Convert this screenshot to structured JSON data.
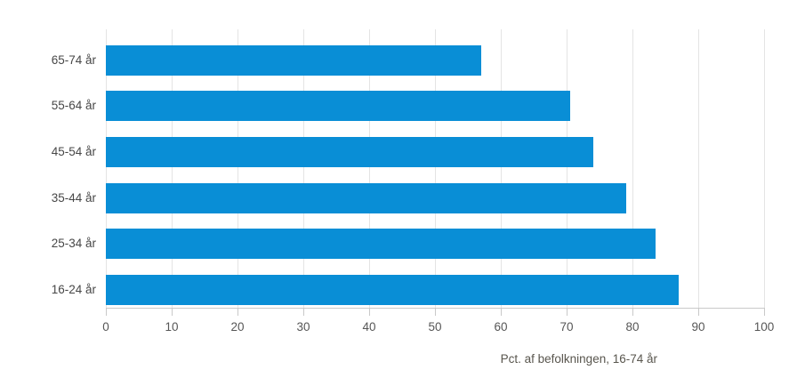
{
  "chart_data": {
    "type": "bar",
    "orientation": "horizontal",
    "title": "",
    "categories": [
      "65-74 år",
      "55-64 år",
      "45-54 år",
      "35-44 år",
      "25-34 år",
      "16-24 år"
    ],
    "values": [
      57,
      70.5,
      74,
      79,
      83.5,
      87
    ],
    "x_ticks": [
      0,
      10,
      20,
      30,
      40,
      50,
      60,
      70,
      80,
      90,
      100
    ],
    "xlim": [
      0,
      100
    ],
    "xlabel": "Pct. af befolkningen, 16-74 år",
    "ylabel": "",
    "grid": true,
    "legend_position": "none",
    "colors": {
      "bar": "#098ed6",
      "gridline": "#e4e4e4",
      "axis": "#c9c9c9",
      "category_label": "#474747",
      "tick_label": "#565656",
      "xlabel": "#59564e"
    }
  }
}
